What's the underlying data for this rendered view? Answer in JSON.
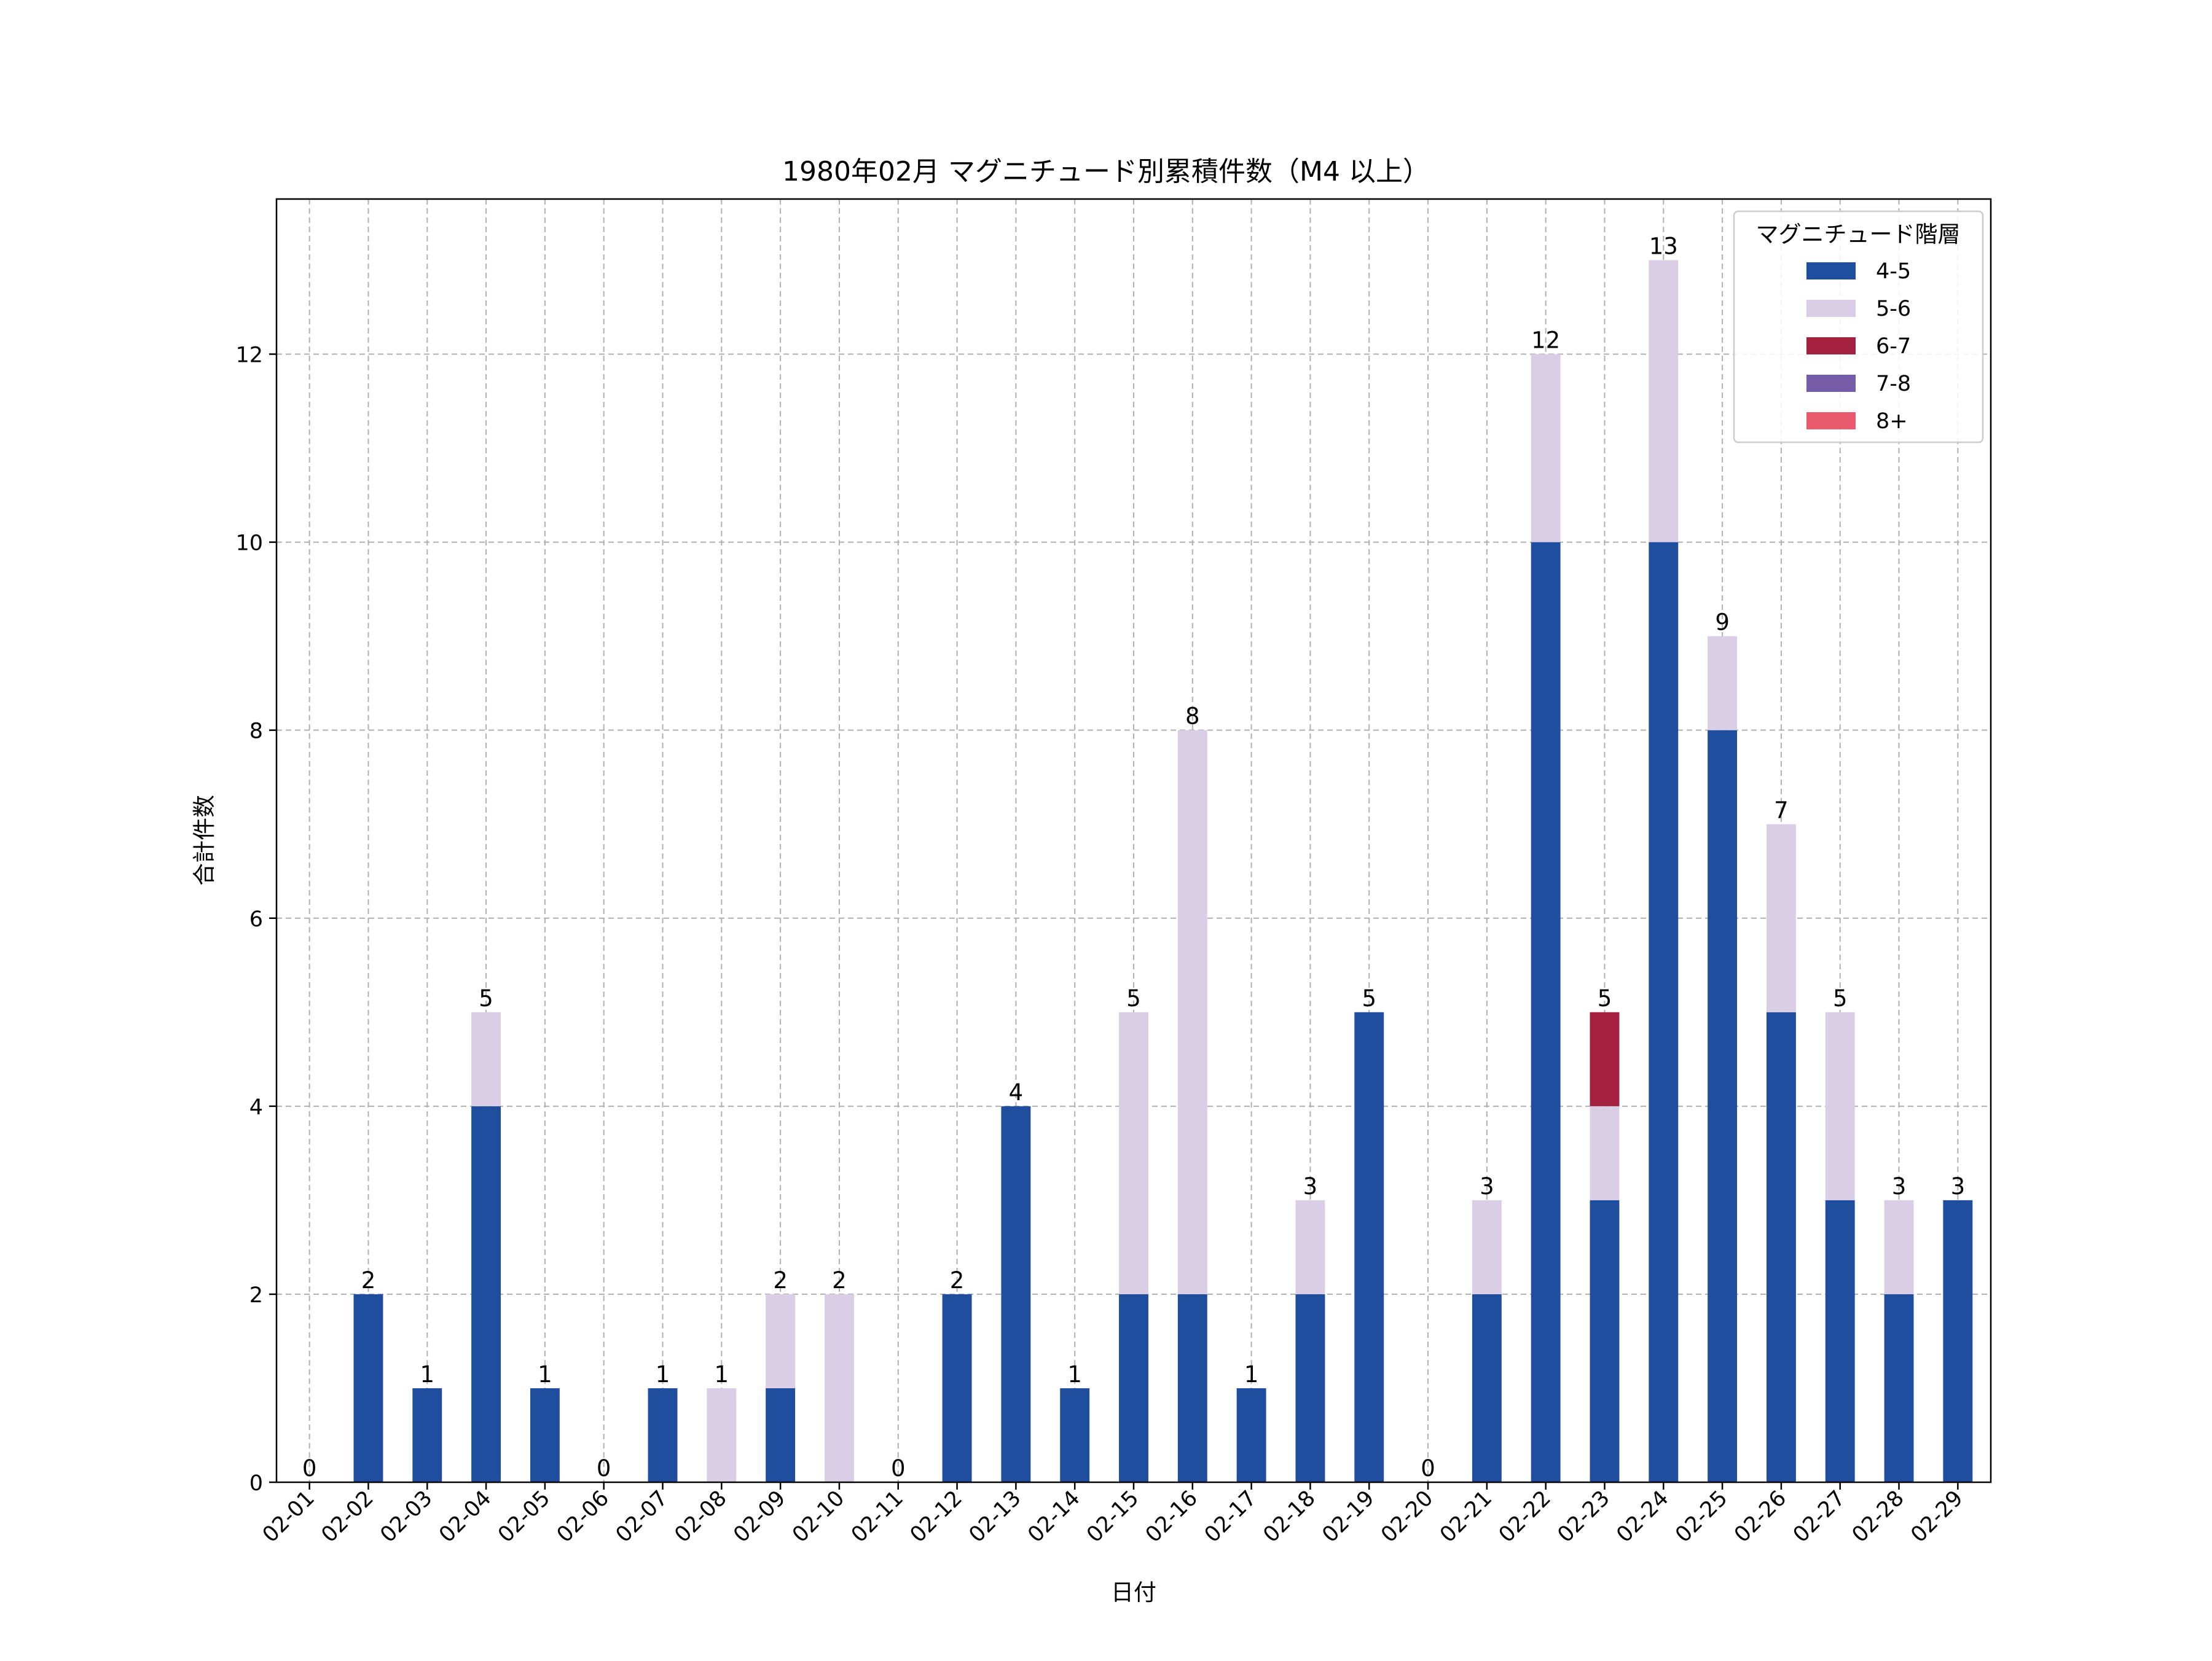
{
  "chart_data": {
    "type": "bar",
    "stacked": true,
    "title": "1980年02月 マグニチュード別累積件数（M4 以上）",
    "xlabel": "日付",
    "ylabel": "合計件数",
    "ylim": [
      0,
      13.65
    ],
    "yticks": [
      0,
      2,
      4,
      6,
      8,
      10,
      12
    ],
    "grid": true,
    "legend_title": "マグニチュード階層",
    "legend_position": "top-right",
    "categories": [
      "02-01",
      "02-02",
      "02-03",
      "02-04",
      "02-05",
      "02-06",
      "02-07",
      "02-08",
      "02-09",
      "02-10",
      "02-11",
      "02-12",
      "02-13",
      "02-14",
      "02-15",
      "02-16",
      "02-17",
      "02-18",
      "02-19",
      "02-20",
      "02-21",
      "02-22",
      "02-23",
      "02-24",
      "02-25",
      "02-26",
      "02-27",
      "02-28",
      "02-29"
    ],
    "series": [
      {
        "name": "4-5",
        "color": "#1f4e9e",
        "values": [
          0,
          2,
          1,
          4,
          1,
          0,
          1,
          0,
          1,
          0,
          0,
          2,
          4,
          1,
          2,
          2,
          1,
          2,
          5,
          0,
          2,
          10,
          3,
          10,
          8,
          5,
          3,
          2,
          3
        ]
      },
      {
        "name": "5-6",
        "color": "#d9cee6",
        "values": [
          0,
          0,
          0,
          1,
          0,
          0,
          0,
          1,
          1,
          2,
          0,
          0,
          0,
          0,
          3,
          6,
          0,
          1,
          0,
          0,
          1,
          2,
          1,
          3,
          1,
          2,
          2,
          1,
          0
        ]
      },
      {
        "name": "6-7",
        "color": "#a3203f",
        "values": [
          0,
          0,
          0,
          0,
          0,
          0,
          0,
          0,
          0,
          0,
          0,
          0,
          0,
          0,
          0,
          0,
          0,
          0,
          0,
          0,
          0,
          0,
          1,
          0,
          0,
          0,
          0,
          0,
          0
        ]
      },
      {
        "name": "7-8",
        "color": "#765ca6",
        "values": [
          0,
          0,
          0,
          0,
          0,
          0,
          0,
          0,
          0,
          0,
          0,
          0,
          0,
          0,
          0,
          0,
          0,
          0,
          0,
          0,
          0,
          0,
          0,
          0,
          0,
          0,
          0,
          0,
          0
        ]
      },
      {
        "name": "8+",
        "color": "#e85a6c",
        "values": [
          0,
          0,
          0,
          0,
          0,
          0,
          0,
          0,
          0,
          0,
          0,
          0,
          0,
          0,
          0,
          0,
          0,
          0,
          0,
          0,
          0,
          0,
          0,
          0,
          0,
          0,
          0,
          0,
          0
        ]
      }
    ],
    "totals": [
      0,
      2,
      1,
      5,
      1,
      0,
      1,
      1,
      2,
      2,
      0,
      2,
      4,
      1,
      5,
      8,
      1,
      3,
      5,
      0,
      3,
      12,
      5,
      13,
      9,
      7,
      5,
      3,
      3
    ]
  }
}
